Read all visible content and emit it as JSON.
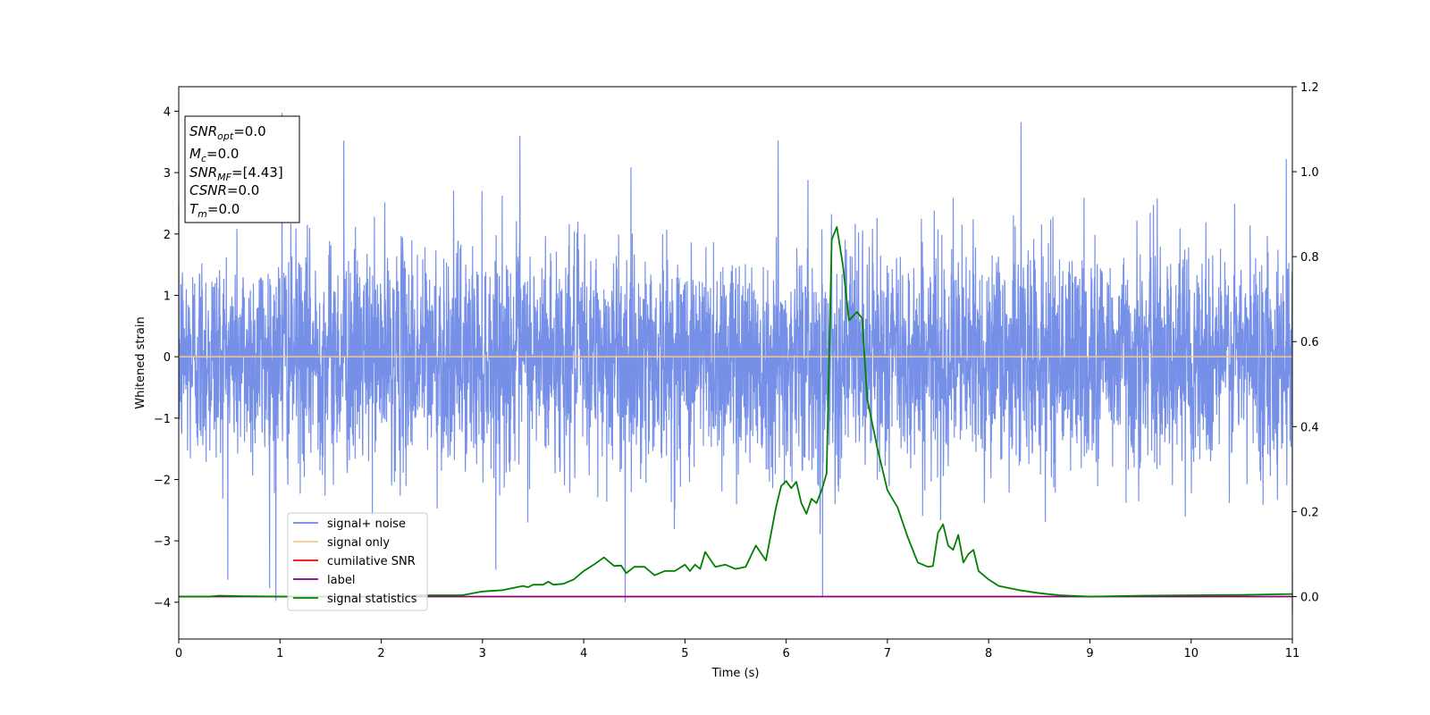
{
  "chart_data": {
    "type": "line",
    "xlabel": "Time (s)",
    "ylabel": "Whitened strain",
    "xlim": [
      0,
      11
    ],
    "ylim": [
      -4.6,
      4.4
    ],
    "y2lim": [
      -0.1,
      1.2
    ],
    "x_ticks": [
      "0",
      "1",
      "2",
      "3",
      "4",
      "5",
      "6",
      "7",
      "8",
      "9",
      "10",
      "11"
    ],
    "y_ticks": [
      {
        "v": 4,
        "label": "4"
      },
      {
        "v": 3,
        "label": "3"
      },
      {
        "v": 2,
        "label": "2"
      },
      {
        "v": 1,
        "label": "1"
      },
      {
        "v": 0,
        "label": "0"
      },
      {
        "v": -1,
        "label": "−1"
      },
      {
        "v": -2,
        "label": "−2"
      },
      {
        "v": -3,
        "label": "−3"
      },
      {
        "v": -4,
        "label": "−4"
      }
    ],
    "y2_ticks": [
      {
        "v": 1.2,
        "label": "1.2"
      },
      {
        "v": 1.0,
        "label": "1.0"
      },
      {
        "v": 0.8,
        "label": "0.8"
      },
      {
        "v": 0.6,
        "label": "0.6"
      },
      {
        "v": 0.4,
        "label": "0.4"
      },
      {
        "v": 0.2,
        "label": "0.2"
      },
      {
        "v": 0.0,
        "label": "0.0"
      }
    ],
    "grid": false,
    "legend_position": "lower-left",
    "series": [
      {
        "name": "signal+ noise",
        "color": "#6a87e6",
        "axis": "left",
        "noise_envelope": {
          "core_std": 0.9,
          "max_abs": 4.0
        },
        "extreme_spikes": [
          {
            "x": 1.02,
            "y": 3.97
          },
          {
            "x": 0.96,
            "y": -3.98
          },
          {
            "x": 4.41,
            "y": -4.0
          },
          {
            "x": 6.36,
            "y": -3.92
          },
          {
            "x": 11.0,
            "y": -4.18
          },
          {
            "x": 3.37,
            "y": 3.6
          },
          {
            "x": 8.32,
            "y": 3.82
          },
          {
            "x": 1.63,
            "y": 3.52
          },
          {
            "x": 5.92,
            "y": 3.52
          },
          {
            "x": 10.94,
            "y": 3.22
          }
        ]
      },
      {
        "name": "signal only",
        "color": "#f5c98a",
        "axis": "left",
        "constant": 0.0
      },
      {
        "name": "cumilative SNR",
        "color": "#ff0000",
        "axis": "right",
        "constant": 0.0
      },
      {
        "name": "label",
        "color": "#800080",
        "axis": "right",
        "constant": 0.0
      },
      {
        "name": "signal statistics",
        "color": "#008000",
        "axis": "right",
        "x": [
          0,
          0.3,
          0.4,
          0.6,
          1.0,
          1.5,
          2.0,
          2.5,
          2.8,
          3.0,
          3.2,
          3.4,
          3.45,
          3.5,
          3.6,
          3.65,
          3.7,
          3.8,
          3.9,
          4.0,
          4.1,
          4.2,
          4.3,
          4.37,
          4.42,
          4.5,
          4.6,
          4.7,
          4.8,
          4.9,
          5.0,
          5.05,
          5.1,
          5.15,
          5.2,
          5.3,
          5.4,
          5.5,
          5.6,
          5.7,
          5.8,
          5.9,
          5.95,
          6.0,
          6.05,
          6.1,
          6.15,
          6.2,
          6.25,
          6.3,
          6.35,
          6.4,
          6.45,
          6.5,
          6.56,
          6.62,
          6.7,
          6.75,
          6.8,
          6.9,
          7.0,
          7.1,
          7.2,
          7.3,
          7.4,
          7.45,
          7.5,
          7.55,
          7.6,
          7.65,
          7.7,
          7.75,
          7.8,
          7.85,
          7.9,
          8.0,
          8.1,
          8.3,
          8.5,
          8.7,
          9.0,
          9.5,
          10.0,
          10.5,
          11.0
        ],
        "y": [
          0.0,
          0.0,
          0.002,
          0.001,
          0.0,
          0.0,
          0.0,
          0.003,
          0.003,
          0.012,
          0.015,
          0.025,
          0.022,
          0.028,
          0.028,
          0.035,
          0.028,
          0.03,
          0.04,
          0.06,
          0.075,
          0.092,
          0.072,
          0.073,
          0.055,
          0.07,
          0.07,
          0.05,
          0.06,
          0.06,
          0.075,
          0.06,
          0.075,
          0.065,
          0.105,
          0.07,
          0.075,
          0.065,
          0.07,
          0.12,
          0.085,
          0.21,
          0.26,
          0.272,
          0.255,
          0.27,
          0.22,
          0.195,
          0.23,
          0.22,
          0.25,
          0.29,
          0.84,
          0.87,
          0.78,
          0.65,
          0.67,
          0.655,
          0.465,
          0.35,
          0.25,
          0.21,
          0.14,
          0.08,
          0.07,
          0.072,
          0.15,
          0.17,
          0.12,
          0.11,
          0.145,
          0.08,
          0.1,
          0.11,
          0.06,
          0.04,
          0.025,
          0.015,
          0.008,
          0.003,
          0.0,
          0.002,
          0.003,
          0.004,
          0.006
        ]
      }
    ]
  },
  "info_box": {
    "lines": [
      {
        "main": "SNR",
        "sub": "opt",
        "value": "=0.0"
      },
      {
        "main": "M",
        "sub": "c",
        "value": "=0.0"
      },
      {
        "main": "SNR",
        "sub": "MF",
        "value": "=[4.43]"
      },
      {
        "main": "CSNR",
        "sub": "",
        "value": "=0.0"
      },
      {
        "main": "T",
        "sub": "m",
        "value": "=0.0"
      }
    ]
  }
}
